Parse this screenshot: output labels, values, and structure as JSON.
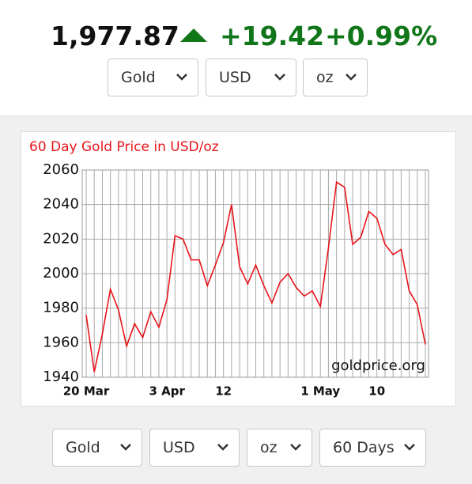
{
  "header": {
    "price": "1,977.87",
    "change": "+19.42",
    "change_pct": "+0.99%"
  },
  "controls_top": [
    "Gold",
    "USD",
    "oz"
  ],
  "chart_data": {
    "type": "line",
    "title": "60 Day Gold Price in USD/oz",
    "watermark": "goldprice.org",
    "categories": [
      "20 Mar",
      null,
      null,
      null,
      null,
      null,
      null,
      null,
      null,
      null,
      "3 Apr",
      null,
      null,
      null,
      null,
      null,
      null,
      "12",
      null,
      null,
      null,
      null,
      null,
      null,
      null,
      null,
      null,
      null,
      null,
      "1 May",
      null,
      null,
      null,
      null,
      null,
      null,
      "10",
      null,
      null,
      null,
      null,
      null,
      null
    ],
    "series": [
      {
        "name": "Gold",
        "color": "#e8151b",
        "values": [
          1976,
          1943,
          1965,
          1991,
          1979,
          1958,
          1971,
          1963,
          1978,
          1969,
          1985,
          2022,
          2020,
          2008,
          2008,
          1993,
          2005,
          2018,
          2040,
          2004,
          1994,
          2005,
          1993,
          1983,
          1995,
          2000,
          1992,
          1987,
          1990,
          1981,
          2015,
          2053,
          2050,
          2017,
          2021,
          2036,
          2032,
          2017,
          2011,
          2014,
          1990,
          1982,
          1959
        ]
      }
    ],
    "ylim": [
      1940,
      2060
    ],
    "yticks": [
      1940,
      1960,
      1980,
      2000,
      2020,
      2040,
      2060
    ],
    "grid": true
  },
  "controls_bottom": [
    "Gold",
    "USD",
    "oz",
    "60 Days"
  ]
}
